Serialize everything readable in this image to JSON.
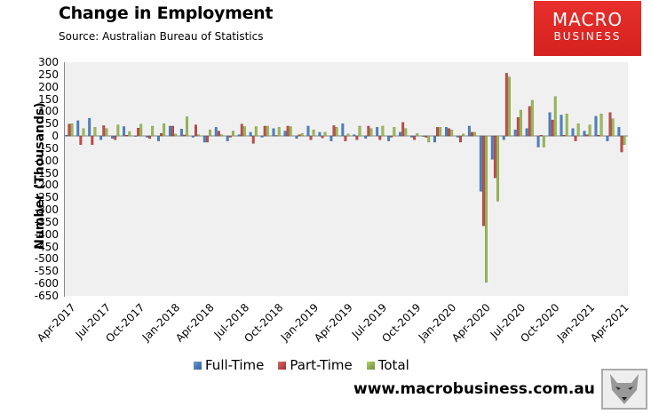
{
  "header": {
    "title": "Change in Employment",
    "subtitle": "Source: Australian Bureau of Statistics",
    "logo_line1": "MACRO",
    "logo_line2": "BUSINESS"
  },
  "footer": {
    "url": "www.macrobusiness.com.au",
    "mascot_icon": "wolf-icon"
  },
  "colors": {
    "full_time": "#4f81bd",
    "part_time": "#c0504d",
    "total": "#9bbb59",
    "brand_red": "#e0282a"
  },
  "chart_data": {
    "type": "bar",
    "title": "Change in Employment",
    "subtitle": "Source: Australian Bureau of Statistics",
    "xlabel": "",
    "ylabel": "Number (Thousands)",
    "ylim": [
      -650,
      300
    ],
    "yticks": [
      300,
      250,
      200,
      150,
      100,
      50,
      0,
      -50,
      -100,
      -150,
      -200,
      -250,
      -300,
      -350,
      -400,
      -450,
      -500,
      -550,
      -600,
      -650
    ],
    "xtick_labels": [
      "Apr-2017",
      "Jul-2017",
      "Oct-2017",
      "Jan-2018",
      "Apr-2018",
      "Jul-2018",
      "Oct-2018",
      "Jan-2019",
      "Apr-2019",
      "Jul-2019",
      "Oct-2019",
      "Jan-2020",
      "Apr-2020",
      "Jul-2020",
      "Oct-2020",
      "Jan-2021",
      "Apr-2021"
    ],
    "legend_position": "bottom",
    "grid": false,
    "categories": [
      "Apr-2017",
      "May-2017",
      "Jun-2017",
      "Jul-2017",
      "Aug-2017",
      "Sep-2017",
      "Oct-2017",
      "Nov-2017",
      "Dec-2017",
      "Jan-2018",
      "Feb-2018",
      "Mar-2018",
      "Apr-2018",
      "May-2018",
      "Jun-2018",
      "Jul-2018",
      "Aug-2018",
      "Sep-2018",
      "Oct-2018",
      "Nov-2018",
      "Dec-2018",
      "Jan-2019",
      "Feb-2019",
      "Mar-2019",
      "Apr-2019",
      "May-2019",
      "Jun-2019",
      "Jul-2019",
      "Aug-2019",
      "Sep-2019",
      "Oct-2019",
      "Nov-2019",
      "Dec-2019",
      "Jan-2020",
      "Feb-2020",
      "Mar-2020",
      "Apr-2020",
      "May-2020",
      "Jun-2020",
      "Jul-2020",
      "Aug-2020",
      "Sep-2020",
      "Oct-2020",
      "Nov-2020",
      "Dec-2020",
      "Jan-2021",
      "Feb-2021",
      "Mar-2021",
      "Apr-2021"
    ],
    "series": [
      {
        "name": "Full-Time",
        "values": [
          3,
          62,
          72,
          -15,
          -10,
          38,
          0,
          -5,
          -20,
          40,
          28,
          -5,
          -25,
          35,
          -20,
          5,
          15,
          -5,
          30,
          20,
          -10,
          40,
          15,
          -20,
          50,
          5,
          -10,
          35,
          -20,
          15,
          -5,
          0,
          -25,
          35,
          -5,
          40,
          -225,
          -95,
          -15,
          25,
          30,
          -45,
          95,
          85,
          30,
          20,
          80,
          -20,
          35
        ]
      },
      {
        "name": "Part-Time",
        "values": [
          48,
          -35,
          -35,
          42,
          -15,
          3,
          32,
          -10,
          10,
          40,
          4,
          45,
          -25,
          20,
          -5,
          48,
          -30,
          40,
          2,
          40,
          5,
          -15,
          -8,
          42,
          -20,
          -15,
          40,
          -15,
          -5,
          55,
          -15,
          -5,
          35,
          30,
          -25,
          15,
          -365,
          -170,
          255,
          75,
          120,
          3,
          65,
          3,
          -20,
          5,
          3,
          95,
          -65
        ]
      },
      {
        "name": "Total",
        "values": [
          50,
          30,
          35,
          30,
          45,
          18,
          48,
          40,
          50,
          8,
          78,
          5,
          25,
          5,
          20,
          38,
          38,
          40,
          35,
          38,
          10,
          25,
          15,
          35,
          8,
          40,
          30,
          40,
          35,
          30,
          10,
          -25,
          35,
          25,
          8,
          15,
          -595,
          -265,
          240,
          105,
          145,
          -45,
          160,
          90,
          50,
          45,
          90,
          70,
          -35
        ]
      }
    ]
  },
  "legend": {
    "items": [
      {
        "label": "Full-Time"
      },
      {
        "label": "Part-Time"
      },
      {
        "label": "Total"
      }
    ]
  }
}
